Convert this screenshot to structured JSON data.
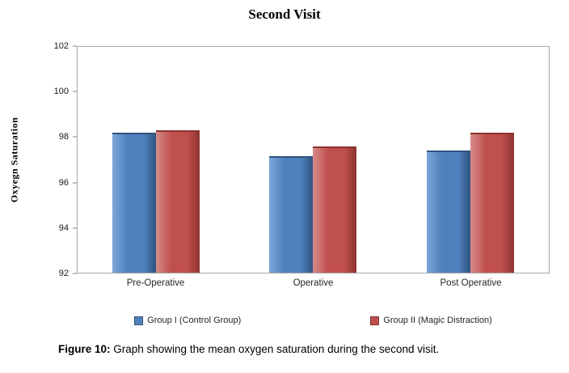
{
  "chart_data": {
    "type": "bar",
    "title": "Second Visit",
    "ylabel": "Oxyegn Saturation",
    "xlabel": "",
    "ylim": [
      92,
      102
    ],
    "yticks": [
      92,
      94,
      96,
      98,
      100,
      102
    ],
    "grid": false,
    "legend_position": "bottom",
    "categories": [
      "Pre-Operative",
      "Operative",
      "Post Operative"
    ],
    "series": [
      {
        "name": "Group I (Control Group)",
        "color": "#4f81bd",
        "color_light": "#7da7d8",
        "color_dark": "#2f537e",
        "values": [
          98.2,
          97.15,
          97.4
        ]
      },
      {
        "name": "Group II (Magic Distraction)",
        "color": "#c0504d",
        "color_light": "#d68c8a",
        "color_dark": "#8c3330",
        "values": [
          98.3,
          97.6,
          98.2
        ]
      }
    ]
  },
  "caption": {
    "prefix": "Figure 10:",
    "text": " Graph showing the mean oxygen saturation during the second visit."
  }
}
